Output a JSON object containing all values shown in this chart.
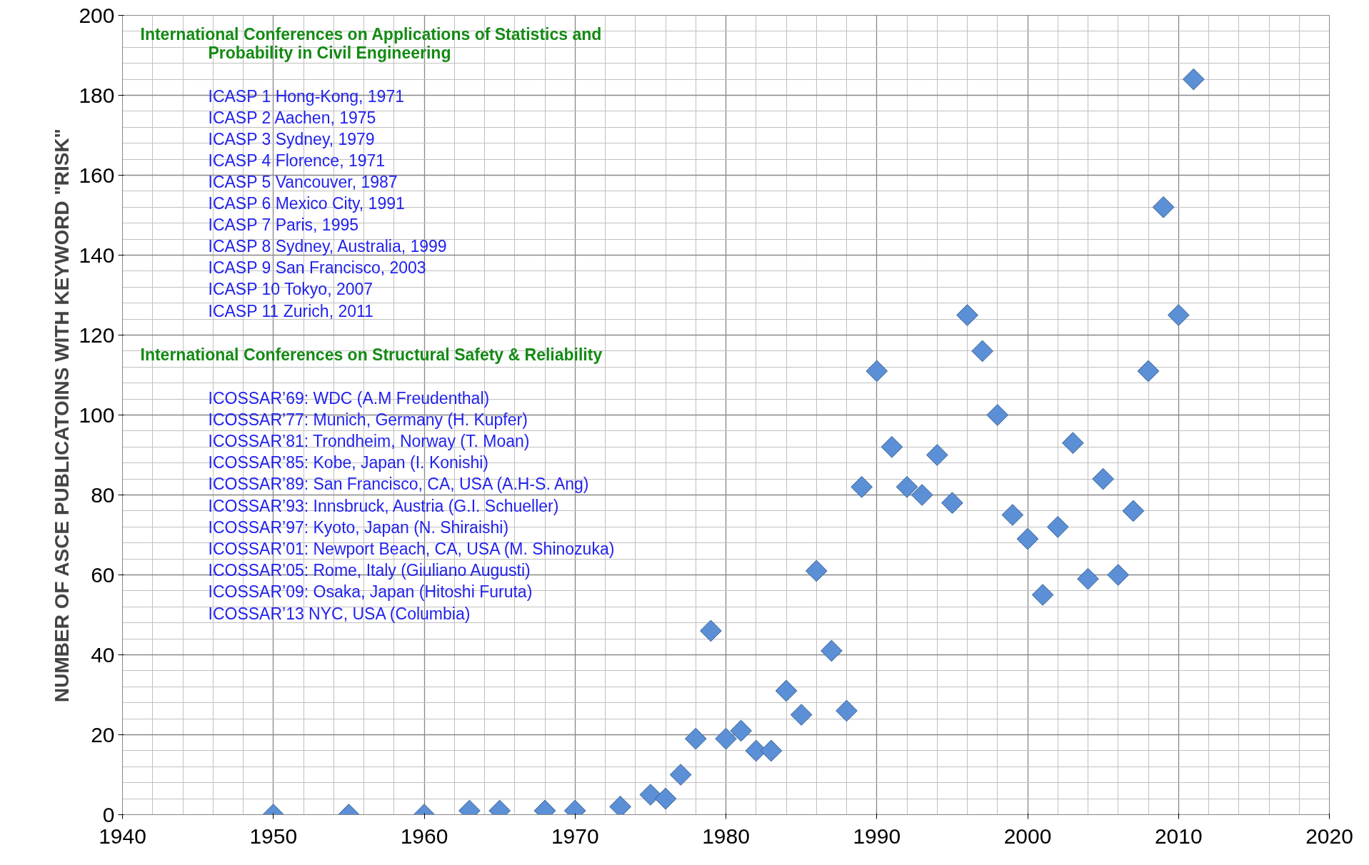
{
  "chart_data": {
    "type": "scatter",
    "ylabel": "NUMBER OF ASCE PUBLICATOINS WITH KEYWORD \"RISK\"",
    "x": [
      1950,
      1955,
      1960,
      1963,
      1965,
      1968,
      1970,
      1973,
      1975,
      1976,
      1977,
      1978,
      1979,
      1980,
      1981,
      1982,
      1983,
      1984,
      1985,
      1986,
      1987,
      1988,
      1989,
      1990,
      1991,
      1992,
      1993,
      1994,
      1995,
      1996,
      1997,
      1998,
      1999,
      2000,
      2001,
      2002,
      2003,
      2004,
      2005,
      2006,
      2007,
      2008,
      2009,
      2010,
      2011
    ],
    "values": [
      0,
      0,
      0,
      1,
      1,
      1,
      1,
      2,
      5,
      4,
      10,
      19,
      46,
      19,
      21,
      16,
      16,
      31,
      25,
      61,
      41,
      26,
      82,
      111,
      92,
      82,
      80,
      90,
      78,
      125,
      116,
      100,
      75,
      69,
      55,
      72,
      93,
      59,
      84,
      60,
      76,
      111,
      152,
      125,
      184
    ],
    "color": "#5b8fd6",
    "marker": "diamond",
    "xlim": [
      1940,
      2020
    ],
    "xticks": [
      1940,
      1950,
      1960,
      1970,
      1980,
      1990,
      2000,
      2010,
      2020
    ],
    "ylim": [
      0,
      200
    ],
    "yticks": [
      0,
      20,
      40,
      60,
      80,
      100,
      120,
      140,
      160,
      180,
      200
    ],
    "grid": true,
    "annotations": [
      "International Conferences on Applications of Statistics and",
      "Probability in Civil Engineering",
      "ICASP 1 Hong-Kong, 1971",
      "ICASP 2 Aachen, 1975",
      "ICASP 3 Sydney, 1979",
      "ICASP 4 Florence, 1971",
      "ICASP 5 Vancouver, 1987",
      "ICASP 6 Mexico City, 1991",
      "ICASP 7 Paris, 1995",
      "ICASP 8 Sydney, Australia, 1999",
      "ICASP 9 San Francisco, 2003",
      "ICASP 10 Tokyo, 2007",
      "ICASP 11 Zurich, 2011",
      "International Conferences on Structural Safety & Reliability",
      "ICOSSAR’69: WDC (A.M Freudenthal)",
      "ICOSSAR’77: Munich, Germany (H. Kupfer)",
      "ICOSSAR’81: Trondheim, Norway (T. Moan)",
      "ICOSSAR’85: Kobe, Japan (I. Konishi)",
      "ICOSSAR’89: San Francisco, CA, USA (A.H-S. Ang)",
      "ICOSSAR’93: Innsbruck, Austria (G.I. Schueller)",
      "ICOSSAR’97: Kyoto, Japan (N. Shiraishi)",
      "ICOSSAR’01: Newport Beach, CA, USA (M. Shinozuka)",
      "ICOSSAR’05: Rome, Italy (Giuliano Augusti)",
      "ICOSSAR’09: Osaka, Japan (Hitoshi Furuta)",
      "ICOSSAR’13  NYC, USA (Columbia)"
    ]
  }
}
